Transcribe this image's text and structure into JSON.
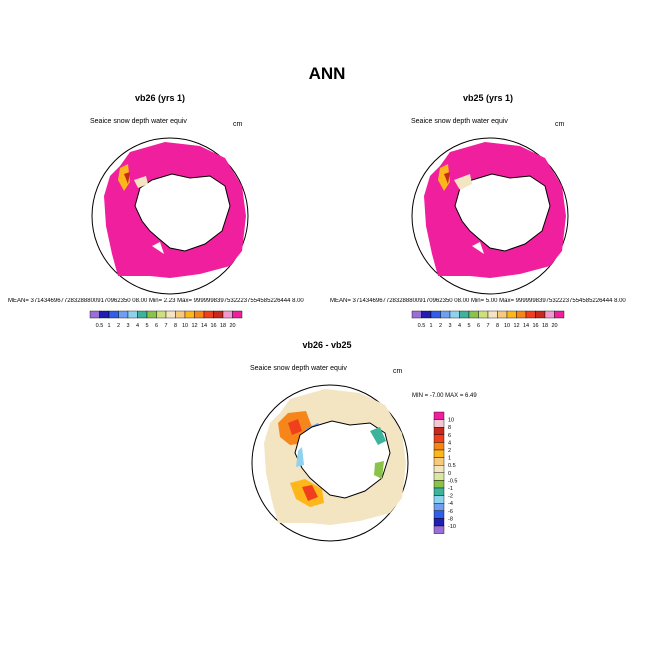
{
  "title": "ANN",
  "panels": [
    {
      "id": "vb26",
      "title": "vb26 (yrs 1)",
      "variable": "Seaice snow depth water equiv",
      "units": "cm",
      "stats": "MEAN= 371434696772832888009170962350 08.00  Min=   2.23  Max= 99999983975322237554585226444 8.00",
      "colorbar": {
        "labels": [
          "0.5",
          "1",
          "2",
          "3",
          "4",
          "5",
          "6",
          "7",
          "8",
          "10",
          "12",
          "14",
          "16",
          "18",
          "20"
        ],
        "colors": [
          "#9b6fd6",
          "#1f1fb4",
          "#2f5fe8",
          "#6f9ff2",
          "#8fd2f0",
          "#3cb39b",
          "#8ac24a",
          "#cfe07a",
          "#f3e4c2",
          "#f7c97a",
          "#fdb71a",
          "#f7861a",
          "#ef3f1c",
          "#c9281d",
          "#f29ad0",
          "#f01f9e"
        ]
      }
    },
    {
      "id": "vb25",
      "title": "vb25 (yrs 1)",
      "variable": "Seaice snow depth water equiv",
      "units": "cm",
      "stats": "MEAN= 371434696772832888009170962350 08.00  Min=   5.00  Max= 99999983975322237554585226444 8.00",
      "colorbar": {
        "labels": [
          "0.5",
          "1",
          "2",
          "3",
          "4",
          "5",
          "6",
          "7",
          "8",
          "10",
          "12",
          "14",
          "16",
          "18",
          "20"
        ],
        "colors": [
          "#9b6fd6",
          "#1f1fb4",
          "#2f5fe8",
          "#6f9ff2",
          "#8fd2f0",
          "#3cb39b",
          "#8ac24a",
          "#cfe07a",
          "#f3e4c2",
          "#f7c97a",
          "#fdb71a",
          "#f7861a",
          "#ef3f1c",
          "#c9281d",
          "#f29ad0",
          "#f01f9e"
        ]
      }
    },
    {
      "id": "diff",
      "title": "vb26 - vb25",
      "variable": "Seaice snow depth water equiv",
      "units": "cm",
      "minmax": "MIN =  -7.00  MAX =   6.49",
      "colorbar": {
        "labels": [
          "10",
          "8",
          "6",
          "4",
          "2",
          "1",
          "0.5",
          "0",
          "-0.5",
          "-1",
          "-2",
          "-4",
          "-6",
          "-8",
          "-10"
        ],
        "colors": [
          "#f01f9e",
          "#f3c8d2",
          "#c9281d",
          "#ef3f1c",
          "#f7861a",
          "#fdb71a",
          "#f7c97a",
          "#f3e4c2",
          "#d9e7a0",
          "#8ac24a",
          "#3cb39b",
          "#8fd2f0",
          "#6f9ff2",
          "#2f5fe8",
          "#1f1fb4",
          "#9b6fd6"
        ]
      }
    }
  ]
}
